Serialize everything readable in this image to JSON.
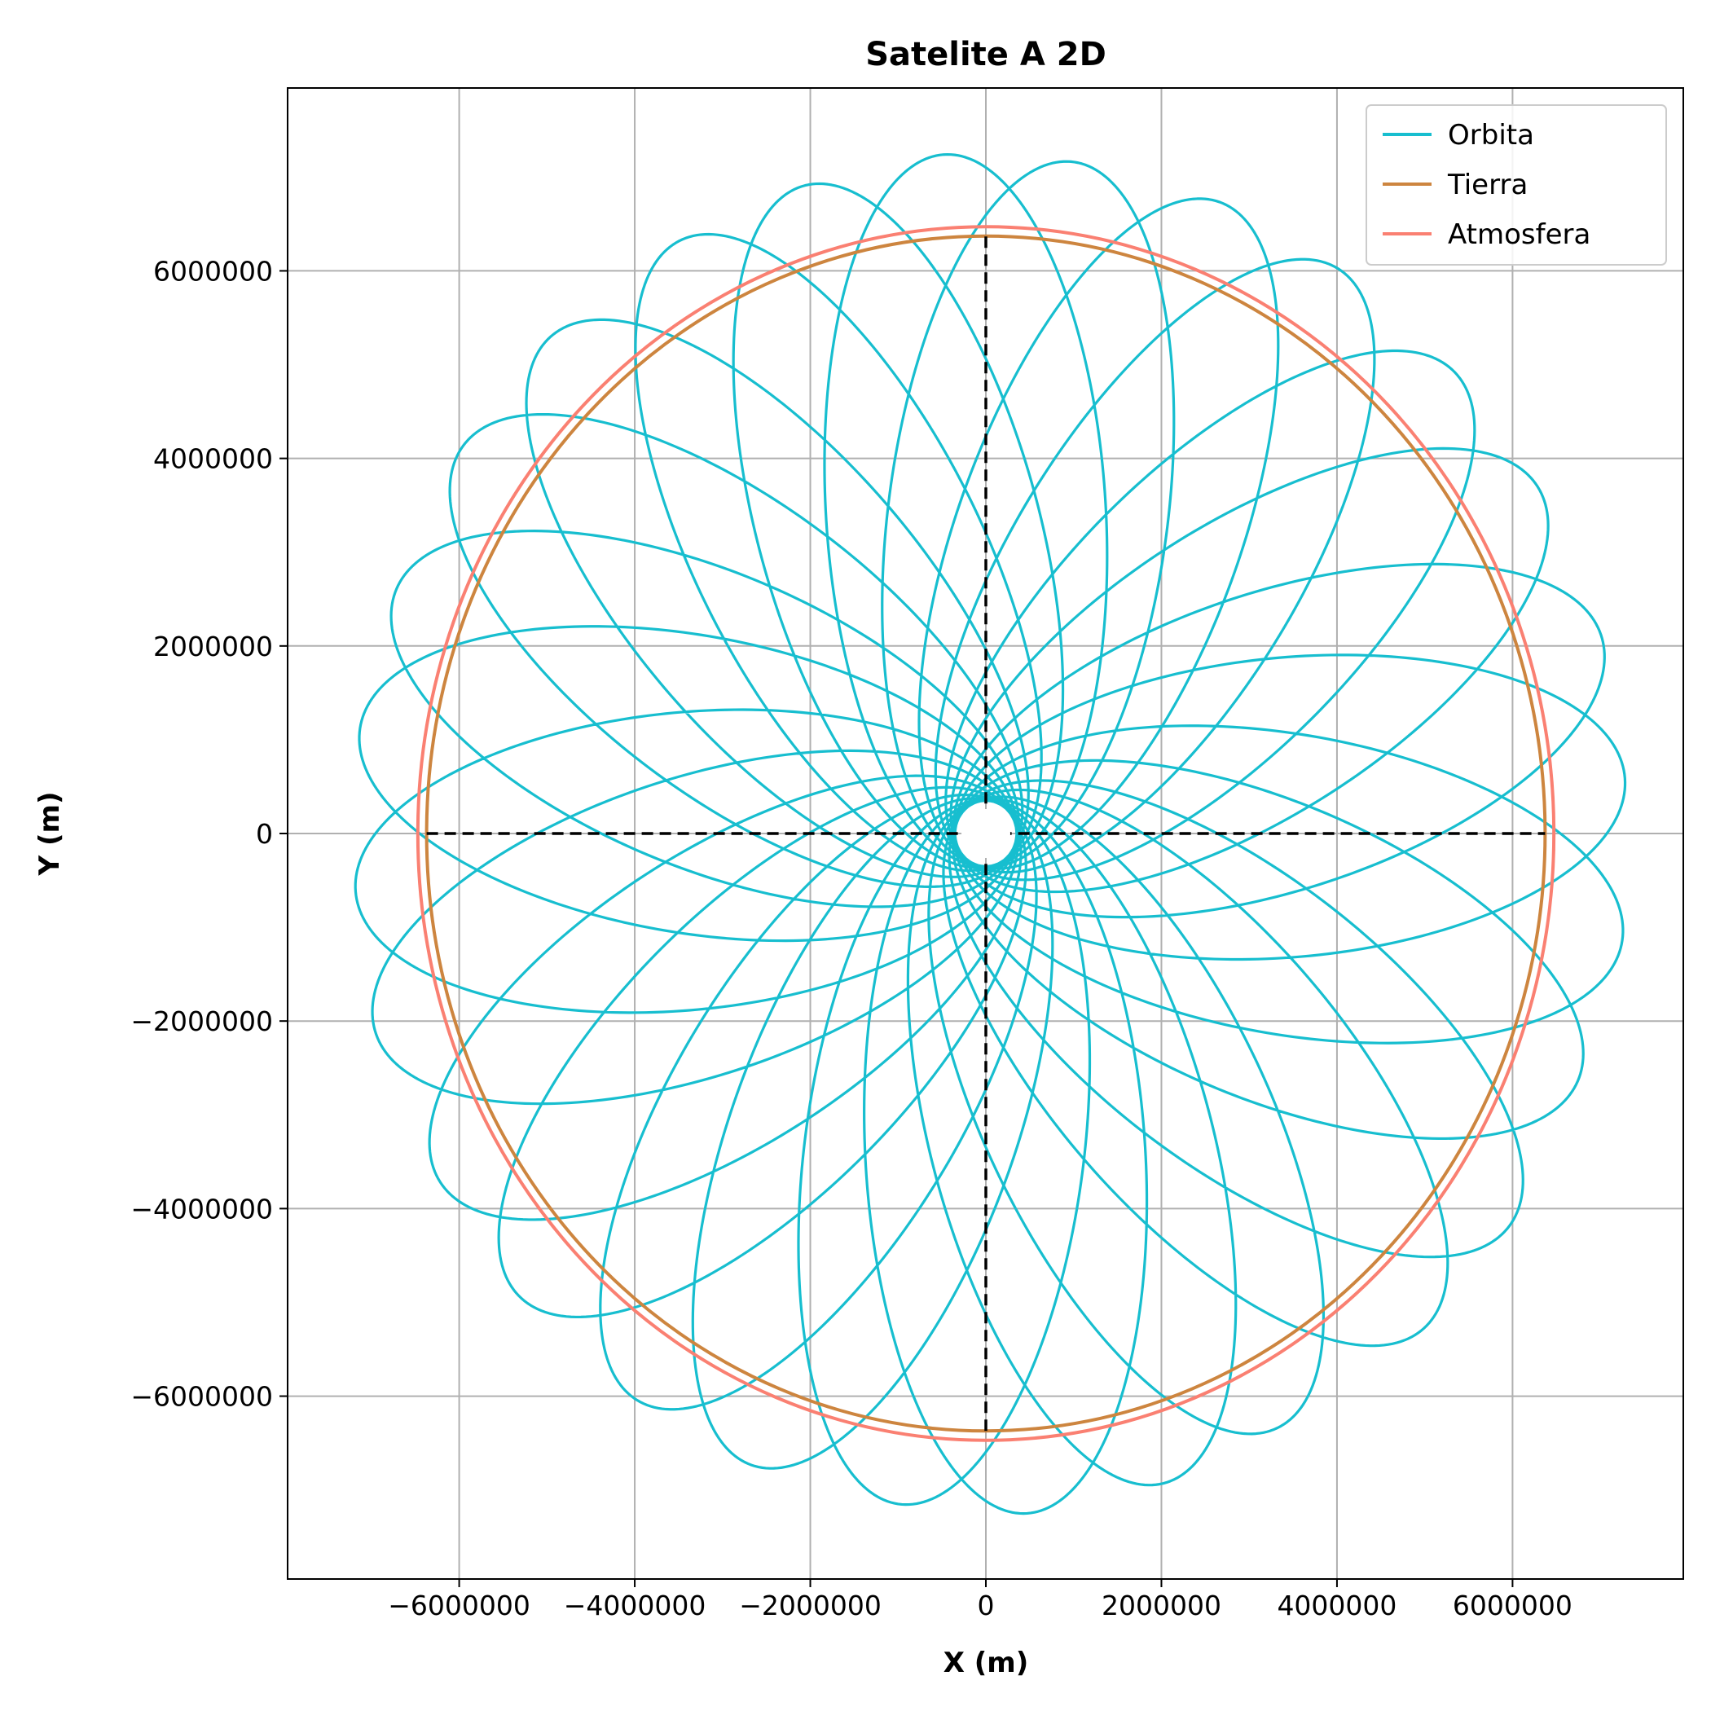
{
  "chart_data": {
    "type": "line",
    "title": "Satelite A 2D",
    "xlabel": "X (m)",
    "ylabel": "Y (m)",
    "xlim": [
      -7950000,
      7950000
    ],
    "ylim": [
      -7950000,
      7950000
    ],
    "grid": true,
    "legend_position": "top-right",
    "x_ticks": [
      -6000000,
      -4000000,
      -2000000,
      0,
      2000000,
      4000000,
      6000000
    ],
    "y_ticks": [
      -6000000,
      -4000000,
      -2000000,
      0,
      2000000,
      4000000,
      6000000
    ],
    "x_tick_labels": [
      "−6000000",
      "−4000000",
      "−2000000",
      "0",
      "2000000",
      "4000000",
      "6000000"
    ],
    "y_tick_labels": [
      "−6000000",
      "−4000000",
      "−2000000",
      "0",
      "2000000",
      "4000000",
      "6000000"
    ],
    "series": [
      {
        "name": "Orbita",
        "color": "#17becf",
        "kind": "rosette",
        "apoapsis_tips": [
          [
            7180000,
            620000
          ],
          [
            6960000,
            2100000
          ],
          [
            6240000,
            3680000
          ],
          [
            5350000,
            4900000
          ],
          [
            4010000,
            6020000
          ],
          [
            2710000,
            6720000
          ],
          [
            1000000,
            7150000
          ],
          [
            -470000,
            7250000
          ],
          [
            -2060000,
            6920000
          ],
          [
            -3360000,
            6320000
          ],
          [
            -5020000,
            5250000
          ],
          [
            -5990000,
            4150000
          ],
          [
            -6760000,
            2600000
          ],
          [
            -7250000,
            1140000
          ],
          [
            -7280000,
            -590000
          ],
          [
            -7020000,
            -2080000
          ],
          [
            -6310000,
            -3660000
          ],
          [
            -5370000,
            -4890000
          ],
          [
            -4050000,
            -6000000
          ],
          [
            -2700000,
            -6720000
          ],
          [
            -1010000,
            -7160000
          ],
          [
            480000,
            -7240000
          ],
          [
            2100000,
            -6900000
          ],
          [
            3530000,
            -6300000
          ],
          [
            4990000,
            -5270000
          ],
          [
            5980000,
            -4100000
          ],
          [
            6730000,
            -2570000
          ],
          [
            7130000,
            -1120000
          ]
        ],
        "periapsis_radius": 350000
      },
      {
        "name": "Tierra",
        "color": "#cd853f",
        "kind": "circle",
        "radius": 6371000
      },
      {
        "name": "Atmosfera",
        "color": "#fa8072",
        "kind": "circle",
        "radius": 6471000
      }
    ],
    "reference_lines": [
      {
        "orientation": "horizontal",
        "value": 0,
        "from": -6371000,
        "to": 6371000,
        "style": "dashed",
        "color": "#000000"
      },
      {
        "orientation": "vertical",
        "value": 0,
        "from": -6371000,
        "to": 6371000,
        "style": "dashed",
        "color": "#000000"
      }
    ]
  }
}
